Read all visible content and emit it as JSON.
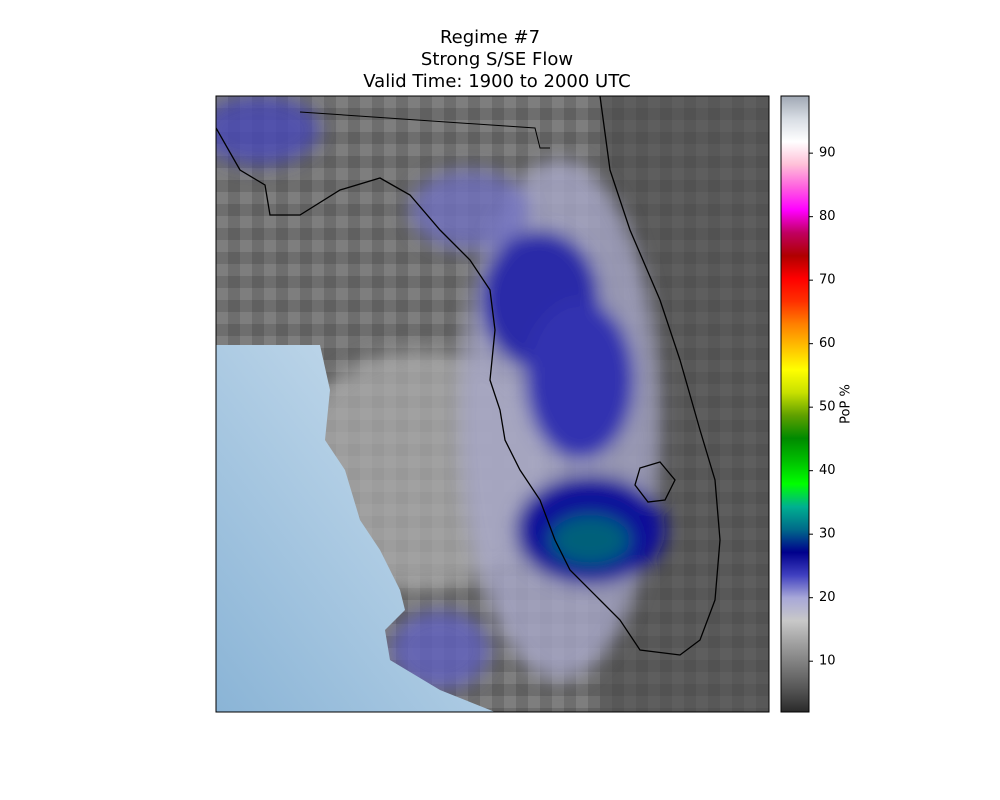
{
  "map": {
    "title": [
      "Regime #7",
      "Strong S/SE Flow",
      "Valid Time: 1900 to 2000 UTC"
    ],
    "colorbar": {
      "label": "PoP %",
      "lim": [
        2,
        99
      ],
      "ticks": [
        10,
        20,
        30,
        40,
        50,
        60,
        70,
        80,
        90
      ],
      "colors": [
        "#2a2a2a",
        "#555555",
        "#7a7a7a",
        "#a0a0a0",
        "#c8c8c8",
        "#a8a8d8",
        "#4040c0",
        "#00008c",
        "#006a8a",
        "#00b090",
        "#00ff00",
        "#00c000",
        "#008a00",
        "#60a000",
        "#c8e000",
        "#ffff00",
        "#ffc000",
        "#ff8000",
        "#ff3000",
        "#ff0000",
        "#b00000",
        "#c00060",
        "#ff00ff",
        "#ff60e0",
        "#ffc0d8",
        "#ffffff",
        "#d8dde4",
        "#a0a8b4"
      ]
    }
  }
}
